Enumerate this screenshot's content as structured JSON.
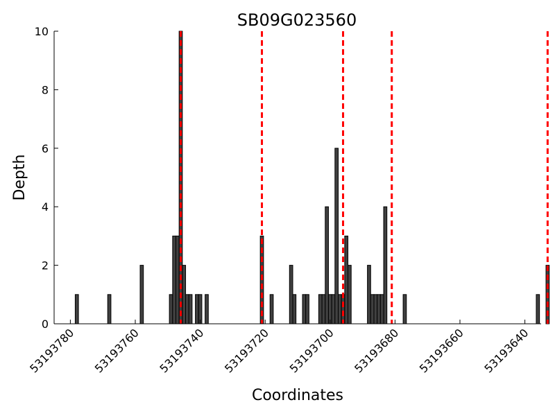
{
  "chart_data": {
    "type": "bar",
    "title": "SB09G023560",
    "xlabel": "Coordinates",
    "ylabel": "Depth",
    "xlim": [
      53193785,
      53193635
    ],
    "ylim": [
      0,
      10
    ],
    "x_reversed": true,
    "x_ticks": [
      53193780,
      53193760,
      53193740,
      53193720,
      53193700,
      53193680,
      53193660,
      53193640
    ],
    "y_ticks": [
      0,
      2,
      4,
      6,
      8,
      10
    ],
    "bar_width": 1,
    "bars": [
      {
        "x": 53193778,
        "y": 1
      },
      {
        "x": 53193768,
        "y": 1
      },
      {
        "x": 53193758,
        "y": 2
      },
      {
        "x": 53193749,
        "y": 1
      },
      {
        "x": 53193748,
        "y": 3
      },
      {
        "x": 53193747,
        "y": 3
      },
      {
        "x": 53193746,
        "y": 10
      },
      {
        "x": 53193745,
        "y": 2
      },
      {
        "x": 53193744,
        "y": 1
      },
      {
        "x": 53193743,
        "y": 1
      },
      {
        "x": 53193741,
        "y": 1
      },
      {
        "x": 53193740,
        "y": 1
      },
      {
        "x": 53193738,
        "y": 1
      },
      {
        "x": 53193721,
        "y": 3
      },
      {
        "x": 53193718,
        "y": 1
      },
      {
        "x": 53193712,
        "y": 2
      },
      {
        "x": 53193711,
        "y": 1
      },
      {
        "x": 53193708,
        "y": 1
      },
      {
        "x": 53193707,
        "y": 1
      },
      {
        "x": 53193703,
        "y": 1
      },
      {
        "x": 53193702,
        "y": 1
      },
      {
        "x": 53193701,
        "y": 4
      },
      {
        "x": 53193700,
        "y": 1
      },
      {
        "x": 53193699,
        "y": 1
      },
      {
        "x": 53193698,
        "y": 6
      },
      {
        "x": 53193697,
        "y": 1
      },
      {
        "x": 53193696,
        "y": 1
      },
      {
        "x": 53193695,
        "y": 3
      },
      {
        "x": 53193694,
        "y": 2
      },
      {
        "x": 53193688,
        "y": 2
      },
      {
        "x": 53193687,
        "y": 1
      },
      {
        "x": 53193686,
        "y": 1
      },
      {
        "x": 53193685,
        "y": 1
      },
      {
        "x": 53193684,
        "y": 1
      },
      {
        "x": 53193683,
        "y": 4
      },
      {
        "x": 53193677,
        "y": 1
      },
      {
        "x": 53193636,
        "y": 1
      },
      {
        "x": 53193633,
        "y": 2
      }
    ],
    "markers": [
      53193746,
      53193721,
      53193696,
      53193681,
      53193633
    ],
    "grid": false,
    "colors": {
      "bar_fill": "#404040",
      "bar_edge": "#000000",
      "marker": "#ff0000",
      "axis": "#000000"
    }
  }
}
